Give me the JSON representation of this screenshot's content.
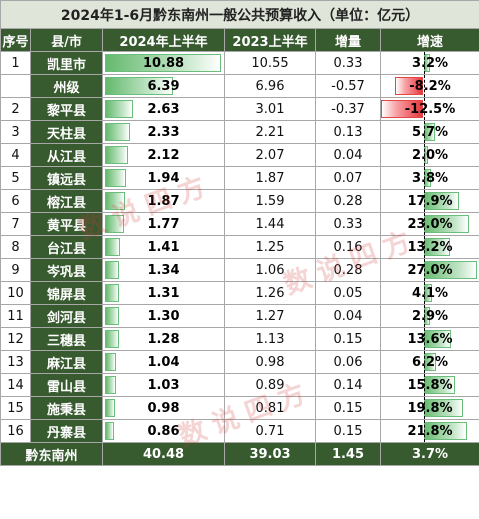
{
  "title": "2024年1-6月黔东南州一般公共预算收入（单位：亿元）",
  "headers": [
    "序号",
    "县/市",
    "2024年上半年",
    "2023上半年",
    "增量",
    "增速"
  ],
  "rows": [
    {
      "no": "1",
      "name": "凯里市",
      "v2024": "10.88",
      "v2023": "10.55",
      "delta": "0.33",
      "growth": "3.2%",
      "growth_value": 3.2
    },
    {
      "no": "",
      "name": "州级",
      "v2024": "6.39",
      "v2023": "6.96",
      "delta": "-0.57",
      "growth": "-8.2%",
      "growth_value": -8.2
    },
    {
      "no": "2",
      "name": "黎平县",
      "v2024": "2.63",
      "v2023": "3.01",
      "delta": "-0.37",
      "growth": "-12.5%",
      "growth_value": -12.5
    },
    {
      "no": "3",
      "name": "天柱县",
      "v2024": "2.33",
      "v2023": "2.21",
      "delta": "0.13",
      "growth": "5.7%",
      "growth_value": 5.7
    },
    {
      "no": "4",
      "name": "从江县",
      "v2024": "2.12",
      "v2023": "2.07",
      "delta": "0.04",
      "growth": "2.0%",
      "growth_value": 2.0
    },
    {
      "no": "5",
      "name": "镇远县",
      "v2024": "1.94",
      "v2023": "1.87",
      "delta": "0.07",
      "growth": "3.8%",
      "growth_value": 3.8
    },
    {
      "no": "6",
      "name": "榕江县",
      "v2024": "1.87",
      "v2023": "1.59",
      "delta": "0.28",
      "growth": "17.9%",
      "growth_value": 17.9
    },
    {
      "no": "7",
      "name": "黄平县",
      "v2024": "1.77",
      "v2023": "1.44",
      "delta": "0.33",
      "growth": "23.0%",
      "growth_value": 23.0
    },
    {
      "no": "8",
      "name": "台江县",
      "v2024": "1.41",
      "v2023": "1.25",
      "delta": "0.16",
      "growth": "13.2%",
      "growth_value": 13.2
    },
    {
      "no": "9",
      "name": "岑巩县",
      "v2024": "1.34",
      "v2023": "1.06",
      "delta": "0.28",
      "growth": "27.0%",
      "growth_value": 27.0
    },
    {
      "no": "10",
      "name": "锦屏县",
      "v2024": "1.31",
      "v2023": "1.26",
      "delta": "0.05",
      "growth": "4.1%",
      "growth_value": 4.1
    },
    {
      "no": "11",
      "name": "剑河县",
      "v2024": "1.30",
      "v2023": "1.27",
      "delta": "0.04",
      "growth": "2.9%",
      "growth_value": 2.9
    },
    {
      "no": "12",
      "name": "三穗县",
      "v2024": "1.28",
      "v2023": "1.13",
      "delta": "0.15",
      "growth": "13.6%",
      "growth_value": 13.6
    },
    {
      "no": "13",
      "name": "麻江县",
      "v2024": "1.04",
      "v2023": "0.98",
      "delta": "0.06",
      "growth": "6.2%",
      "growth_value": 6.2
    },
    {
      "no": "14",
      "name": "雷山县",
      "v2024": "1.03",
      "v2023": "0.89",
      "delta": "0.14",
      "growth": "15.8%",
      "growth_value": 15.8
    },
    {
      "no": "15",
      "name": "施秉县",
      "v2024": "0.98",
      "v2023": "0.81",
      "delta": "0.15",
      "growth": "19.8%",
      "growth_value": 19.8
    },
    {
      "no": "16",
      "name": "丹寨县",
      "v2024": "0.86",
      "v2023": "0.71",
      "delta": "0.15",
      "growth": "21.8%",
      "growth_value": 21.8
    }
  ],
  "total": {
    "name": "黔东南州",
    "v2024": "40.48",
    "v2023": "39.03",
    "delta": "1.45",
    "growth": "3.7%"
  },
  "watermark": "数说四方",
  "colors": {
    "header_bg": "#375a2f",
    "title_bg": "#dfe5d8",
    "bar_green": "#64b96d",
    "bar_red": "#e8363d"
  }
}
